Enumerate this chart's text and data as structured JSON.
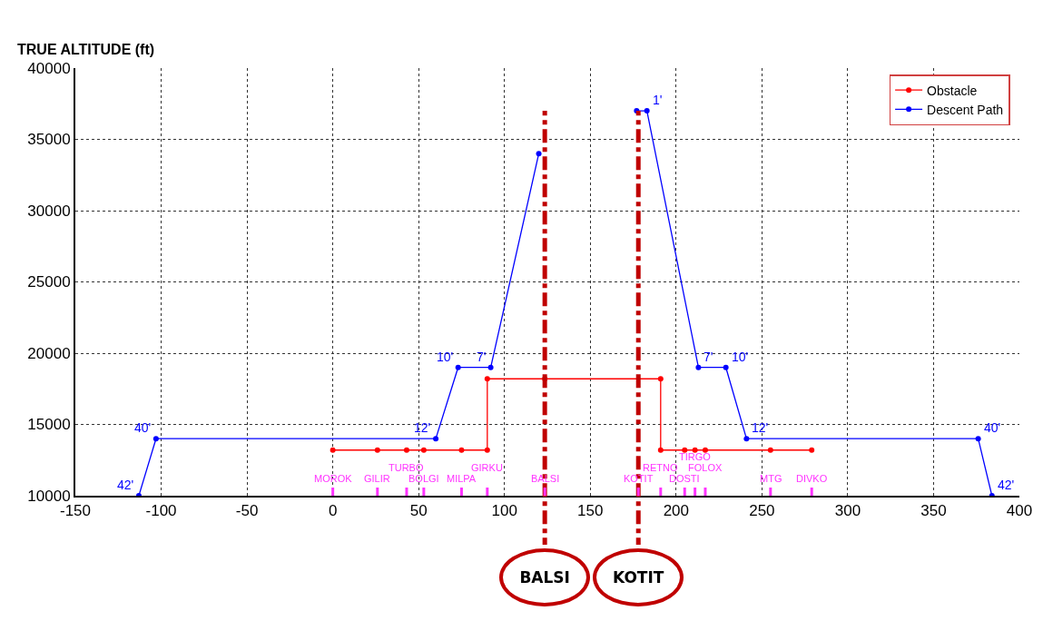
{
  "chart_data": {
    "type": "line",
    "ylabel": "TRUE ALTITUDE (ft)",
    "xlim": [
      -150,
      400
    ],
    "xticks": [
      -150,
      -100,
      -50,
      0,
      50,
      100,
      150,
      200,
      250,
      300,
      350,
      400
    ],
    "ylim": [
      10000,
      40000
    ],
    "yticks": [
      10000,
      15000,
      20000,
      25000,
      30000,
      35000,
      40000
    ],
    "grid": true,
    "legend": "top right",
    "marker": "circle",
    "line_style": "solid",
    "series": [
      {
        "name": "Obstacle",
        "color": "#ff0000",
        "x": [
          0,
          26,
          43,
          53,
          75,
          90,
          90,
          123.5,
          191,
          191,
          205,
          211,
          217,
          255,
          279
        ],
        "values": [
          13200,
          13200,
          13200,
          13200,
          13200,
          13200,
          18200,
          18200,
          18200,
          13200,
          13200,
          13200,
          13200,
          13200,
          13200
        ]
      },
      {
        "name": "Descent Path",
        "color": "#0000ff",
        "x": [
          -113,
          -103,
          60,
          73,
          92,
          120,
          150,
          177,
          183,
          213,
          229,
          241,
          376,
          384
        ],
        "values": [
          10000,
          14000,
          14000,
          19000,
          19000,
          34000,
          null,
          37000,
          37000,
          19000,
          19000,
          14000,
          14000,
          10000
        ]
      }
    ],
    "ref_lines": [
      {
        "axis": "x",
        "value": 123.5,
        "label": "BALSI",
        "color": "#c00000",
        "line_style": "dashed"
      },
      {
        "axis": "x",
        "value": 178,
        "label": "KOTIT",
        "color": "#c00000",
        "line_style": "dashed"
      }
    ],
    "annotations": [
      {
        "text": "42'",
        "x": -113,
        "y": 10000
      },
      {
        "text": "40'",
        "x": -103,
        "y": 14000
      },
      {
        "text": "12'",
        "x": 60,
        "y": 14000
      },
      {
        "text": "10'",
        "x": 73,
        "y": 19000
      },
      {
        "text": "7'",
        "x": 92,
        "y": 19000
      },
      {
        "text": "1'",
        "x": 183,
        "y": 37000
      },
      {
        "text": "7'",
        "x": 213,
        "y": 19000
      },
      {
        "text": "10'",
        "x": 229,
        "y": 19000
      },
      {
        "text": "12'",
        "x": 241,
        "y": 14000
      },
      {
        "text": "40'",
        "x": 376,
        "y": 14000
      },
      {
        "text": "42'",
        "x": 384,
        "y": 10000
      },
      {
        "text": "MOROK",
        "x": 0,
        "y": 13200
      },
      {
        "text": "GILIR",
        "x": 26,
        "y": 13200
      },
      {
        "text": "TURBO",
        "x": 43,
        "y": 13200
      },
      {
        "text": "BOLGI",
        "x": 53,
        "y": 13200
      },
      {
        "text": "MILPA",
        "x": 75,
        "y": 13200
      },
      {
        "text": "GIRKU",
        "x": 90,
        "y": 13200
      },
      {
        "text": "BALSI",
        "x": 123.5
      },
      {
        "text": "KOTIT",
        "x": 178
      },
      {
        "text": "RETNO",
        "x": 191,
        "y": 13200
      },
      {
        "text": "DOSTI",
        "x": 205,
        "y": 13200
      },
      {
        "text": "TIRGO",
        "x": 211,
        "y": 13200
      },
      {
        "text": "FOLOX",
        "x": 217,
        "y": 13200
      },
      {
        "text": "MTG",
        "x": 255,
        "y": 13200
      },
      {
        "text": "DIVKO",
        "x": 279,
        "y": 13200
      }
    ]
  }
}
